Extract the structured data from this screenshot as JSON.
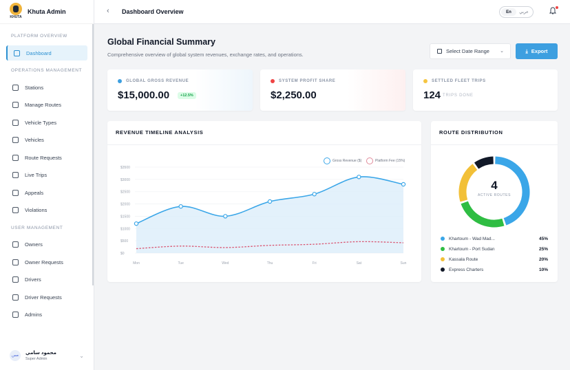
{
  "brand": {
    "name": "Khuta Admin",
    "logo_text": "KHUTA"
  },
  "sidebar": {
    "sections": [
      {
        "title": "PLATFORM OVERVIEW"
      },
      {
        "title": "OPERATIONS MANAGEMENT"
      },
      {
        "title": "USER MANAGEMENT"
      }
    ],
    "items": [
      {
        "label": "Dashboard",
        "icon": "dashboard-icon",
        "active": true
      },
      {
        "label": "Stations",
        "icon": "station-icon"
      },
      {
        "label": "Manage Routes",
        "icon": "route-icon"
      },
      {
        "label": "Vehicle Types",
        "icon": "bus-icon"
      },
      {
        "label": "Vehicles",
        "icon": "car-icon"
      },
      {
        "label": "Route Requests",
        "icon": "route-request-icon"
      },
      {
        "label": "Live Trips",
        "icon": "live-icon"
      },
      {
        "label": "Appeals",
        "icon": "appeals-icon"
      },
      {
        "label": "Violations",
        "icon": "violation-icon"
      },
      {
        "label": "Owners",
        "icon": "owner-icon"
      },
      {
        "label": "Owner Requests",
        "icon": "owner-request-icon"
      },
      {
        "label": "Drivers",
        "icon": "drivers-icon"
      },
      {
        "label": "Driver Requests",
        "icon": "driver-request-icon"
      },
      {
        "label": "Admins",
        "icon": "admins-icon"
      }
    ],
    "user": {
      "name": "محمود سامي",
      "role": "Super Admin",
      "avatar": "مس"
    }
  },
  "topbar": {
    "back": "‹",
    "title": "Dashboard Overview",
    "lang_en": "En",
    "lang_ar": "عربي"
  },
  "header": {
    "title": "Global Financial Summary",
    "subtitle": "Comprehensive overview of global system revenues, exchange rates, and operations.",
    "date_button": "Select Date Range",
    "export_button": "Export"
  },
  "stats": [
    {
      "label": "GLOBAL GROSS REVENUE",
      "value": "$15,000.00",
      "badge": "+12.5%",
      "color": "#3d9fe0"
    },
    {
      "label": "SYSTEM PROFIT SHARE",
      "value": "$2,250.00",
      "color": "#ef4444"
    },
    {
      "label": "SETTLED FLEET TRIPS",
      "value": "124",
      "note": "TRIPS DONE",
      "color": "#f5c542"
    }
  ],
  "timeline": {
    "title": "REVENUE TIMELINE ANALYSIS",
    "legend_gross": "Gross Revenue ($)",
    "legend_fee": "Platform Fee (15%)"
  },
  "distribution": {
    "title": "ROUTE DISTRIBUTION",
    "center_value": "4",
    "center_label": "ACTIVE ROUTES",
    "items": [
      {
        "label": "Khartoum - Wad Mad...",
        "pct": "45%",
        "value": 45,
        "color": "#3aa6e8"
      },
      {
        "label": "Khartoum - Port Sudan",
        "pct": "25%",
        "value": 25,
        "color": "#2fbd43"
      },
      {
        "label": "Kassala Route",
        "pct": "20%",
        "value": 20,
        "color": "#f2c038"
      },
      {
        "label": "Express Charters",
        "pct": "10%",
        "value": 10,
        "color": "#111827"
      }
    ]
  },
  "chart_data": [
    {
      "type": "area",
      "title": "REVENUE TIMELINE ANALYSIS",
      "categories": [
        "Mon",
        "Tue",
        "Wed",
        "Thu",
        "Fri",
        "Sat",
        "Sun"
      ],
      "ylim": [
        0,
        3500
      ],
      "yticks": [
        "$0",
        "$500",
        "$1000",
        "$1500",
        "$2000",
        "$2500",
        "$3000",
        "$3500"
      ],
      "series": [
        {
          "name": "Gross Revenue ($)",
          "values": [
            1200,
            1900,
            1500,
            2100,
            2400,
            3100,
            2800
          ],
          "color": "#3aa6e8"
        },
        {
          "name": "Platform Fee (15%)",
          "values": [
            180,
            285,
            225,
            315,
            360,
            465,
            420
          ],
          "color": "#d9536f"
        }
      ]
    },
    {
      "type": "pie",
      "title": "ROUTE DISTRIBUTION",
      "categories": [
        "Khartoum - Wad Mad...",
        "Khartoum - Port Sudan",
        "Kassala Route",
        "Express Charters"
      ],
      "values": [
        45,
        25,
        20,
        10
      ]
    }
  ]
}
